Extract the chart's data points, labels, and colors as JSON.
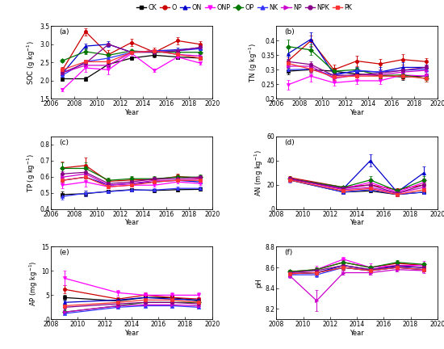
{
  "legend_labels": [
    "CK",
    "O",
    "ON",
    "ONP",
    "OP",
    "NK",
    "NP",
    "NPK",
    "PK"
  ],
  "color_map": {
    "CK": "#000000",
    "O": "#cc0000",
    "ON": "#0000cc",
    "ONP": "#ff00ff",
    "OP": "#007700",
    "NK": "#3333ff",
    "NP": "#cc00cc",
    "NPK": "#880088",
    "PK": "#ff3333"
  },
  "marker_map": {
    "CK": "s",
    "O": "o",
    "ON": "^",
    "ONP": "v",
    "OP": "D",
    "NK": "^",
    "NP": ">",
    "NPK": "o",
    "PK": "s"
  },
  "SOC": {
    "years": [
      2007,
      2009,
      2011,
      2013,
      2015,
      2017,
      2019
    ],
    "xlim": [
      2006,
      2020
    ],
    "xticks": [
      2006,
      2008,
      2010,
      2012,
      2014,
      2016,
      2018,
      2020
    ],
    "ylim": [
      1.5,
      3.5
    ],
    "yticks": [
      1.5,
      2.0,
      2.5,
      3.0,
      3.5
    ],
    "ylabel": "SOC (g kg$^{-1}$)",
    "label": "(a)",
    "data": {
      "CK": [
        2.05,
        2.05,
        2.45,
        2.62,
        2.7,
        2.65,
        2.62
      ],
      "O": [
        2.3,
        3.35,
        2.72,
        3.05,
        2.78,
        3.1,
        3.0
      ],
      "ON": [
        2.2,
        2.95,
        3.0,
        2.78,
        2.82,
        2.85,
        2.9
      ],
      "ONP": [
        1.75,
        2.35,
        2.3,
        2.75,
        2.28,
        2.65,
        2.48
      ],
      "OP": [
        2.55,
        2.8,
        2.7,
        2.82,
        2.78,
        2.78,
        2.78
      ],
      "NK": [
        2.15,
        2.52,
        2.62,
        2.78,
        2.82,
        2.82,
        2.88
      ],
      "NP": [
        2.22,
        2.42,
        2.42,
        2.78,
        2.82,
        2.72,
        2.68
      ],
      "NPK": [
        2.22,
        2.48,
        3.0,
        2.78,
        2.78,
        2.82,
        2.92
      ],
      "PK": [
        2.3,
        2.52,
        2.52,
        2.78,
        2.82,
        2.72,
        2.62
      ]
    },
    "errors": {
      "CK": [
        0.05,
        0.05,
        0.08,
        0.05,
        0.05,
        0.05,
        0.05
      ],
      "O": [
        0.08,
        0.1,
        0.12,
        0.1,
        0.12,
        0.1,
        0.08
      ],
      "ON": [
        0.05,
        0.08,
        0.08,
        0.05,
        0.05,
        0.05,
        0.05
      ],
      "ONP": [
        0.05,
        0.1,
        0.12,
        0.08,
        0.05,
        0.05,
        0.05
      ],
      "OP": [
        0.05,
        0.08,
        0.05,
        0.05,
        0.05,
        0.05,
        0.05
      ],
      "NK": [
        0.05,
        0.05,
        0.05,
        0.05,
        0.05,
        0.05,
        0.05
      ],
      "NP": [
        0.05,
        0.05,
        0.05,
        0.05,
        0.05,
        0.05,
        0.05
      ],
      "NPK": [
        0.05,
        0.08,
        0.05,
        0.05,
        0.05,
        0.05,
        0.05
      ],
      "PK": [
        0.05,
        0.05,
        0.05,
        0.05,
        0.05,
        0.05,
        0.05
      ]
    }
  },
  "TN": {
    "years": [
      2007,
      2009,
      2011,
      2013,
      2015,
      2017,
      2019
    ],
    "xlim": [
      2006,
      2020
    ],
    "xticks": [
      2006,
      2008,
      2010,
      2012,
      2014,
      2016,
      2018,
      2020
    ],
    "ylim": [
      0.2,
      0.45
    ],
    "yticks": [
      0.2,
      0.25,
      0.3,
      0.35,
      0.4
    ],
    "ylabel": "TN (g kg$^{-1}$)",
    "label": "(b)",
    "data": {
      "CK": [
        0.295,
        0.3,
        0.295,
        0.285,
        0.28,
        0.275,
        0.278
      ],
      "O": [
        0.33,
        0.4,
        0.3,
        0.33,
        0.32,
        0.335,
        0.328
      ],
      "ON": [
        0.355,
        0.405,
        0.285,
        0.295,
        0.292,
        0.308,
        0.308
      ],
      "ONP": [
        0.248,
        0.278,
        0.255,
        0.262,
        0.262,
        0.282,
        0.278
      ],
      "OP": [
        0.38,
        0.368,
        0.295,
        0.3,
        0.28,
        0.282,
        0.27
      ],
      "NK": [
        0.3,
        0.302,
        0.28,
        0.298,
        0.292,
        0.298,
        0.302
      ],
      "NP": [
        0.312,
        0.312,
        0.27,
        0.282,
        0.282,
        0.292,
        0.298
      ],
      "NPK": [
        0.328,
        0.318,
        0.28,
        0.282,
        0.288,
        0.298,
        0.308
      ],
      "PK": [
        0.322,
        0.302,
        0.275,
        0.278,
        0.278,
        0.278,
        0.27
      ]
    },
    "errors": {
      "CK": [
        0.01,
        0.01,
        0.01,
        0.01,
        0.01,
        0.01,
        0.01
      ],
      "O": [
        0.012,
        0.018,
        0.018,
        0.018,
        0.018,
        0.018,
        0.012
      ],
      "ON": [
        0.018,
        0.025,
        0.01,
        0.01,
        0.018,
        0.018,
        0.01
      ],
      "ONP": [
        0.018,
        0.018,
        0.01,
        0.01,
        0.01,
        0.01,
        0.01
      ],
      "OP": [
        0.025,
        0.018,
        0.01,
        0.01,
        0.01,
        0.01,
        0.01
      ],
      "NK": [
        0.01,
        0.01,
        0.01,
        0.01,
        0.01,
        0.01,
        0.01
      ],
      "NP": [
        0.01,
        0.01,
        0.01,
        0.01,
        0.01,
        0.01,
        0.01
      ],
      "NPK": [
        0.01,
        0.01,
        0.01,
        0.01,
        0.01,
        0.01,
        0.01
      ],
      "PK": [
        0.01,
        0.01,
        0.01,
        0.01,
        0.01,
        0.01,
        0.01
      ]
    }
  },
  "TP": {
    "years": [
      2007,
      2009,
      2011,
      2013,
      2015,
      2017,
      2019
    ],
    "xlim": [
      2006,
      2020
    ],
    "xticks": [
      2006,
      2008,
      2010,
      2012,
      2014,
      2016,
      2018,
      2020
    ],
    "ylim": [
      0.4,
      0.85
    ],
    "yticks": [
      0.4,
      0.5,
      0.6,
      0.7,
      0.8
    ],
    "ylabel": "TP (g kg$^{-1}$)",
    "label": "(c)",
    "data": {
      "CK": [
        0.49,
        0.495,
        0.51,
        0.52,
        0.515,
        0.52,
        0.522
      ],
      "O": [
        0.655,
        0.67,
        0.572,
        0.58,
        0.582,
        0.602,
        0.592
      ],
      "ON": [
        0.578,
        0.598,
        0.548,
        0.558,
        0.568,
        0.578,
        0.568
      ],
      "ONP": [
        0.548,
        0.568,
        0.538,
        0.548,
        0.548,
        0.568,
        0.558
      ],
      "OP": [
        0.652,
        0.652,
        0.578,
        0.588,
        0.588,
        0.598,
        0.598
      ],
      "NK": [
        0.478,
        0.498,
        0.508,
        0.518,
        0.518,
        0.528,
        0.528
      ],
      "NP": [
        0.598,
        0.618,
        0.548,
        0.558,
        0.578,
        0.578,
        0.588
      ],
      "NPK": [
        0.618,
        0.628,
        0.558,
        0.568,
        0.588,
        0.588,
        0.598
      ],
      "PK": [
        0.578,
        0.598,
        0.538,
        0.548,
        0.568,
        0.578,
        0.578
      ]
    },
    "errors": {
      "CK": [
        0.018,
        0.018,
        0.01,
        0.01,
        0.01,
        0.01,
        0.01
      ],
      "O": [
        0.038,
        0.048,
        0.018,
        0.018,
        0.018,
        0.018,
        0.018
      ],
      "ON": [
        0.018,
        0.028,
        0.01,
        0.01,
        0.01,
        0.01,
        0.01
      ],
      "ONP": [
        0.018,
        0.028,
        0.01,
        0.01,
        0.01,
        0.01,
        0.01
      ],
      "OP": [
        0.038,
        0.038,
        0.018,
        0.018,
        0.018,
        0.018,
        0.018
      ],
      "NK": [
        0.018,
        0.018,
        0.01,
        0.01,
        0.01,
        0.01,
        0.01
      ],
      "NP": [
        0.018,
        0.028,
        0.01,
        0.01,
        0.01,
        0.01,
        0.01
      ],
      "NPK": [
        0.018,
        0.028,
        0.01,
        0.01,
        0.01,
        0.01,
        0.01
      ],
      "PK": [
        0.018,
        0.028,
        0.01,
        0.01,
        0.01,
        0.01,
        0.01
      ]
    }
  },
  "AN": {
    "years": [
      2009,
      2013,
      2015,
      2017,
      2019
    ],
    "xlim": [
      2008,
      2020
    ],
    "xticks": [
      2008,
      2010,
      2012,
      2014,
      2016,
      2018,
      2020
    ],
    "ylim": [
      0,
      60
    ],
    "yticks": [
      0,
      20,
      40,
      60
    ],
    "ylabel": "AN (mg kg$^{-1}$)",
    "label": "(d)",
    "data": {
      "CK": [
        24,
        14,
        15,
        12,
        14
      ],
      "O": [
        26,
        18,
        20,
        16,
        20
      ],
      "ON": [
        25,
        17,
        40,
        14,
        30
      ],
      "ONP": [
        25,
        17,
        22,
        14,
        22
      ],
      "OP": [
        25,
        18,
        24,
        15,
        24
      ],
      "NK": [
        24,
        14,
        16,
        12,
        14
      ],
      "NP": [
        25,
        16,
        18,
        13,
        18
      ],
      "NPK": [
        25,
        17,
        20,
        13,
        20
      ],
      "PK": [
        24,
        15,
        17,
        12,
        16
      ]
    },
    "errors": {
      "CK": [
        1.5,
        1.0,
        1.0,
        1.0,
        1.0
      ],
      "O": [
        1.5,
        1.5,
        2.0,
        1.5,
        2.0
      ],
      "ON": [
        1.5,
        1.5,
        5.0,
        1.5,
        5.0
      ],
      "ONP": [
        1.5,
        1.5,
        3.0,
        1.5,
        3.0
      ],
      "OP": [
        1.5,
        1.5,
        3.0,
        1.5,
        3.0
      ],
      "NK": [
        2.0,
        1.0,
        1.0,
        1.0,
        1.0
      ],
      "NP": [
        1.5,
        1.0,
        1.5,
        1.0,
        1.5
      ],
      "NPK": [
        1.5,
        1.5,
        2.0,
        1.0,
        2.0
      ],
      "PK": [
        1.5,
        1.0,
        1.5,
        1.0,
        1.5
      ]
    }
  },
  "AP": {
    "years": [
      2009,
      2013,
      2015,
      2017,
      2019
    ],
    "xlim": [
      2008,
      2020
    ],
    "xticks": [
      2008,
      2010,
      2012,
      2014,
      2016,
      2018,
      2020
    ],
    "ylim": [
      0,
      15
    ],
    "yticks": [
      0,
      5,
      10,
      15
    ],
    "ylabel": "AP (mg kg$^{-1}$)",
    "label": "(e)",
    "data": {
      "CK": [
        4.5,
        3.8,
        4.5,
        4.5,
        3.8
      ],
      "O": [
        6.2,
        4.2,
        5.0,
        4.5,
        4.2
      ],
      "ON": [
        3.5,
        4.0,
        4.5,
        4.2,
        4.0
      ],
      "ONP": [
        8.5,
        5.5,
        5.0,
        5.0,
        5.0
      ],
      "OP": [
        1.5,
        2.8,
        3.5,
        3.5,
        3.5
      ],
      "NK": [
        1.2,
        2.5,
        2.8,
        2.8,
        2.5
      ],
      "NP": [
        1.5,
        2.8,
        3.0,
        3.0,
        2.8
      ],
      "NPK": [
        2.5,
        3.2,
        3.5,
        3.5,
        3.2
      ],
      "PK": [
        2.8,
        3.5,
        4.0,
        4.0,
        3.5
      ]
    },
    "errors": {
      "CK": [
        0.5,
        0.3,
        0.5,
        0.5,
        0.3
      ],
      "O": [
        0.8,
        0.4,
        0.5,
        0.4,
        0.4
      ],
      "ON": [
        0.4,
        0.4,
        0.5,
        0.4,
        0.4
      ],
      "ONP": [
        1.5,
        0.6,
        0.5,
        0.5,
        0.5
      ],
      "OP": [
        0.3,
        0.3,
        0.3,
        0.3,
        0.3
      ],
      "NK": [
        0.2,
        0.2,
        0.3,
        0.2,
        0.2
      ],
      "NP": [
        0.3,
        0.2,
        0.3,
        0.2,
        0.2
      ],
      "NPK": [
        0.4,
        0.3,
        0.3,
        0.3,
        0.3
      ],
      "PK": [
        0.4,
        0.3,
        0.4,
        0.4,
        0.3
      ]
    }
  },
  "pH": {
    "years": [
      2009,
      2011,
      2013,
      2015,
      2017,
      2019
    ],
    "xlim": [
      2008,
      2020
    ],
    "xticks": [
      2008,
      2010,
      2012,
      2014,
      2016,
      2018,
      2020
    ],
    "ylim": [
      8.1,
      8.8
    ],
    "yticks": [
      8.2,
      8.4,
      8.6,
      8.8
    ],
    "ylabel": "pH",
    "label": "(f)",
    "data": {
      "CK": [
        8.54,
        8.55,
        8.6,
        8.57,
        8.6,
        8.58
      ],
      "O": [
        8.56,
        8.58,
        8.65,
        8.6,
        8.64,
        8.62
      ],
      "ON": [
        8.54,
        8.55,
        8.62,
        8.58,
        8.61,
        8.6
      ],
      "ONP": [
        8.55,
        8.58,
        8.68,
        8.6,
        8.62,
        8.62
      ],
      "OP": [
        8.56,
        8.58,
        8.65,
        8.6,
        8.65,
        8.63
      ],
      "NK": [
        8.53,
        8.53,
        8.6,
        8.57,
        8.6,
        8.58
      ],
      "NP": [
        8.52,
        8.28,
        8.55,
        8.55,
        8.58,
        8.57
      ],
      "NPK": [
        8.55,
        8.57,
        8.62,
        8.58,
        8.62,
        8.6
      ],
      "PK": [
        8.54,
        8.55,
        8.6,
        8.57,
        8.6,
        8.58
      ]
    },
    "errors": {
      "CK": [
        0.02,
        0.02,
        0.02,
        0.02,
        0.02,
        0.02
      ],
      "O": [
        0.02,
        0.02,
        0.02,
        0.02,
        0.02,
        0.02
      ],
      "ON": [
        0.02,
        0.02,
        0.02,
        0.02,
        0.02,
        0.02
      ],
      "ONP": [
        0.02,
        0.04,
        0.02,
        0.04,
        0.02,
        0.04
      ],
      "OP": [
        0.02,
        0.02,
        0.02,
        0.02,
        0.02,
        0.02
      ],
      "NK": [
        0.02,
        0.02,
        0.02,
        0.02,
        0.02,
        0.02
      ],
      "NP": [
        0.02,
        0.1,
        0.02,
        0.02,
        0.02,
        0.02
      ],
      "NPK": [
        0.02,
        0.02,
        0.02,
        0.02,
        0.02,
        0.02
      ],
      "PK": [
        0.02,
        0.02,
        0.02,
        0.02,
        0.02,
        0.02
      ]
    }
  }
}
